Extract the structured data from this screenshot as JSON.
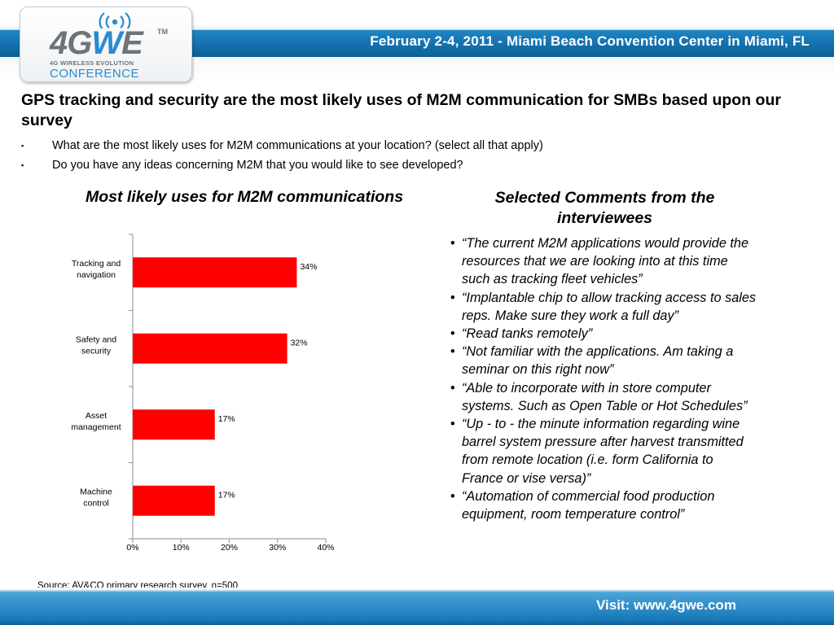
{
  "header": {
    "event_line": "February 2-4, 2011 - Miami Beach Convention Center in Miami, FL",
    "logo": {
      "main_left": "4G",
      "main_accent": "W",
      "main_right": "E",
      "tm": "TM",
      "subtitle": "4G WIRELESS EVOLUTION",
      "conference": "CONFERENCE",
      "icon": "signal-waves-icon"
    },
    "colors": {
      "bar": "#0c6fae",
      "accent": "#2a8ccf"
    }
  },
  "page": {
    "title": "GPS tracking and security are the most likely uses of M2M communication for SMBs based upon our survey",
    "bullets": [
      {
        "mark": "▪",
        "text": "What are the most likely uses for M2M communications at your location? (select all that apply)"
      },
      {
        "mark": "▪",
        "text": "Do you have any ideas concerning M2M that you would like to see developed?"
      }
    ]
  },
  "chart_section": {
    "title": "Most likely uses for M2M communications"
  },
  "chart_data": {
    "type": "bar",
    "orientation": "horizontal",
    "categories": [
      "Tracking and navigation",
      "Safety and security",
      "Asset management",
      "Machine control"
    ],
    "category_lines": [
      [
        "Tracking and",
        "navigation"
      ],
      [
        "Safety and",
        "security"
      ],
      [
        "Asset",
        "management"
      ],
      [
        "Machine",
        "control"
      ]
    ],
    "values": [
      34,
      32,
      17,
      17
    ],
    "data_labels": [
      "34%",
      "32%",
      "17%",
      "17%"
    ],
    "xlim": [
      0,
      40
    ],
    "ticks": [
      0,
      10,
      20,
      30,
      40
    ],
    "tick_labels": [
      "0%",
      "10%",
      "20%",
      "30%",
      "40%"
    ],
    "bar_color": "#ff0000",
    "grid": false,
    "legend": "none"
  },
  "comments": {
    "title": "Selected Comments from the interviewees",
    "items": [
      "“The current M2M applications would provide the resources that we are looking into at this time such as tracking fleet vehicles”",
      "“Implantable chip to allow tracking access to sales reps.  Make sure they work a full day”",
      "“Read tanks remotely”",
      "“Not familiar with the applications. Am taking a seminar on this right now”",
      "“Able to incorporate with in store computer systems. Such as Open Table or Hot Schedules”",
      "“Up - to - the minute information regarding wine barrel system pressure after harvest transmitted from remote location (i.e. form California to France or vise versa)”",
      "“Automation of commercial food production equipment, room temperature control”"
    ]
  },
  "source": "Source: AV&CO primary research survey, n=500",
  "footer": {
    "text": "Visit: www.4gwe.com"
  }
}
